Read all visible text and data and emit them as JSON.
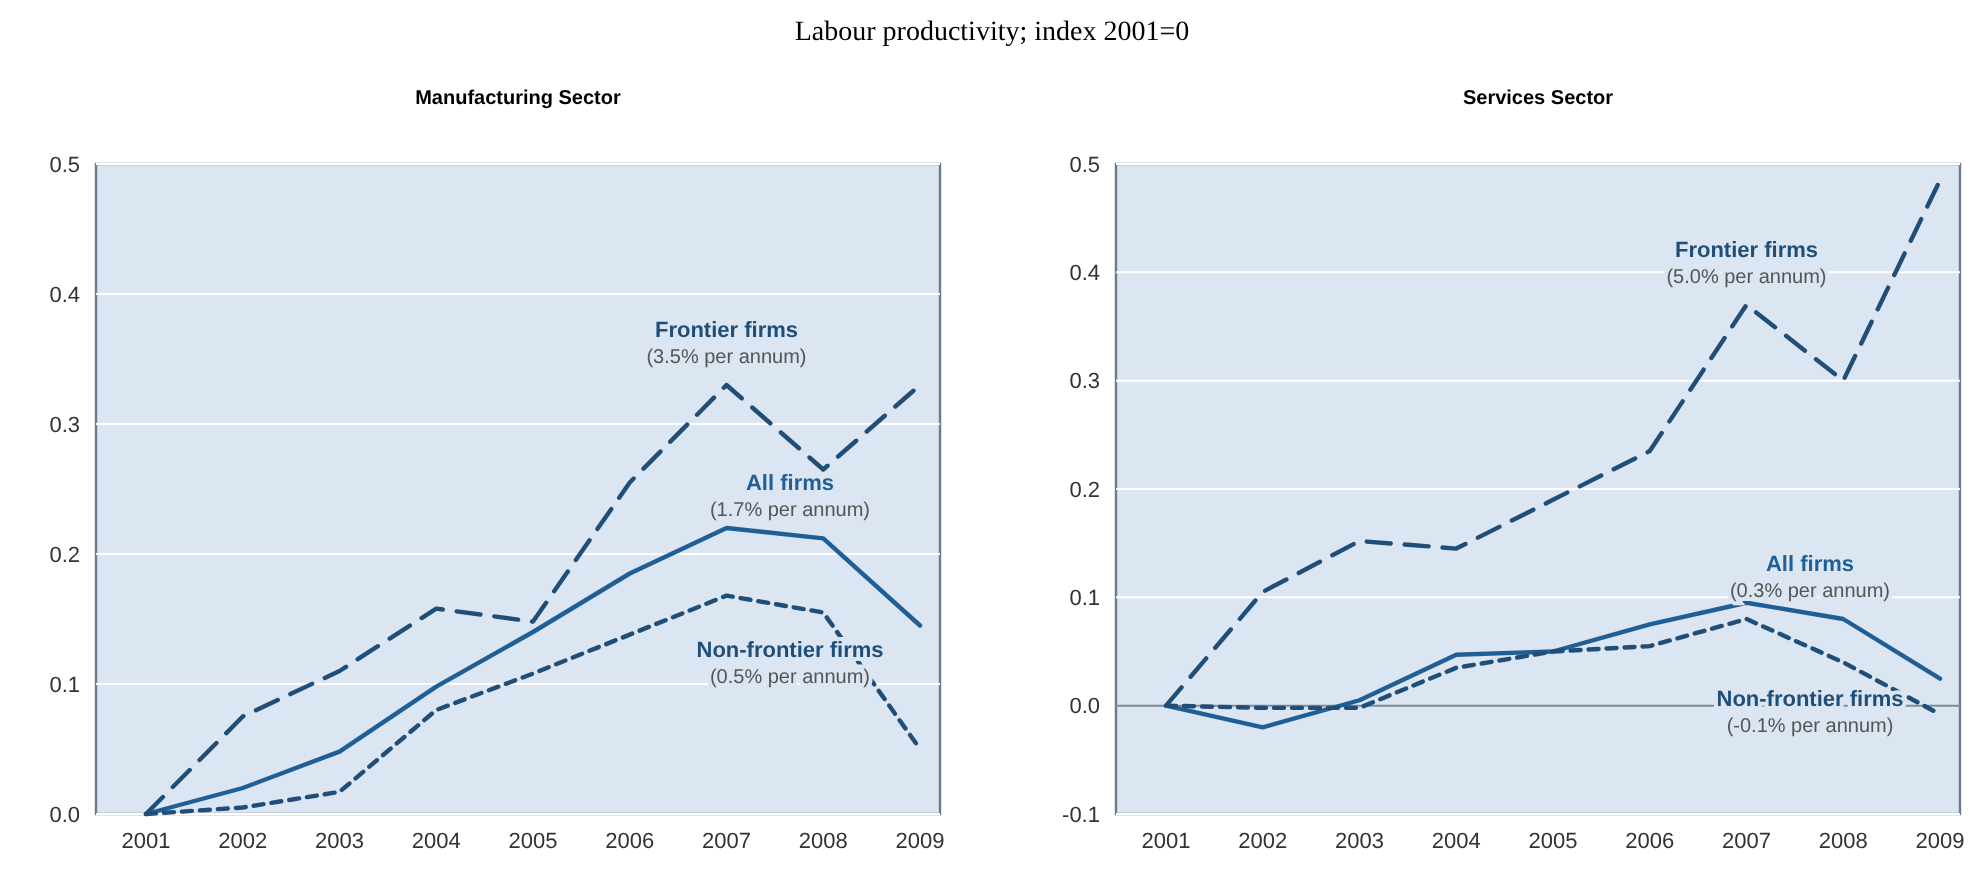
{
  "chart_data": [
    {
      "type": "line",
      "title": "Labour productivity; index 2001=0",
      "subtitle": "Manufacturing Sector",
      "categories": [
        "2001",
        "2002",
        "2003",
        "2004",
        "2005",
        "2006",
        "2007",
        "2008",
        "2009"
      ],
      "ylim": [
        0,
        0.5
      ],
      "yticks": [
        {
          "value": 0,
          "label": "0.0"
        },
        0.1,
        0.2,
        0.3,
        0.4,
        0.5
      ],
      "grid": "y",
      "annotations": [
        "(3.5% per annum)",
        "(1.7% per annum)",
        "(0.5% per annum)"
      ],
      "series": [
        {
          "name": "Frontier firms",
          "color": "#1f4e79",
          "line_style": "dashed",
          "values": [
            0,
            0.075,
            0.11,
            0.158,
            0.148,
            0.255,
            0.33,
            0.265,
            0.33
          ]
        },
        {
          "name": "All firms",
          "color": "#1f5f96",
          "line_style": "solid",
          "values": [
            0,
            0.02,
            0.048,
            0.098,
            0.14,
            0.185,
            0.22,
            0.212,
            0.145
          ]
        },
        {
          "name": "Non-frontier firms",
          "color": "#1f4e79",
          "line_style": "dotted",
          "values": [
            0,
            0.005,
            0.017,
            0.08,
            0.108,
            0.138,
            0.168,
            0.155,
            0.05
          ]
        }
      ]
    },
    {
      "type": "line",
      "subtitle": "Services Sector",
      "categories": [
        "2001",
        "2002",
        "2003",
        "2004",
        "2005",
        "2006",
        "2007",
        "2008",
        "2009"
      ],
      "ylim": [
        -0.1,
        0.5
      ],
      "yticks": [
        -0.1,
        {
          "value": 0,
          "label": "0.0"
        },
        0.1,
        0.2,
        0.3,
        0.4,
        0.5
      ],
      "grid": "y",
      "annotations": [
        "(5.0% per annum)",
        "(0.3% per annum)",
        "(-0.1% per annum)"
      ],
      "series": [
        {
          "name": "Frontier firms",
          "color": "#1f4e79",
          "line_style": "dashed",
          "values": [
            0,
            0.105,
            0.152,
            0.145,
            0.19,
            0.235,
            0.37,
            0.3,
            0.485
          ]
        },
        {
          "name": "All firms",
          "color": "#1f5f96",
          "line_style": "solid",
          "values": [
            0,
            -0.02,
            0.005,
            0.047,
            0.05,
            0.075,
            0.095,
            0.08,
            0.025
          ]
        },
        {
          "name": "Non-frontier firms",
          "color": "#1f4e79",
          "line_style": "dotted",
          "values": [
            0,
            -0.002,
            -0.002,
            0.035,
            0.05,
            0.055,
            0.08,
            0.04,
            -0.008
          ]
        }
      ]
    }
  ]
}
